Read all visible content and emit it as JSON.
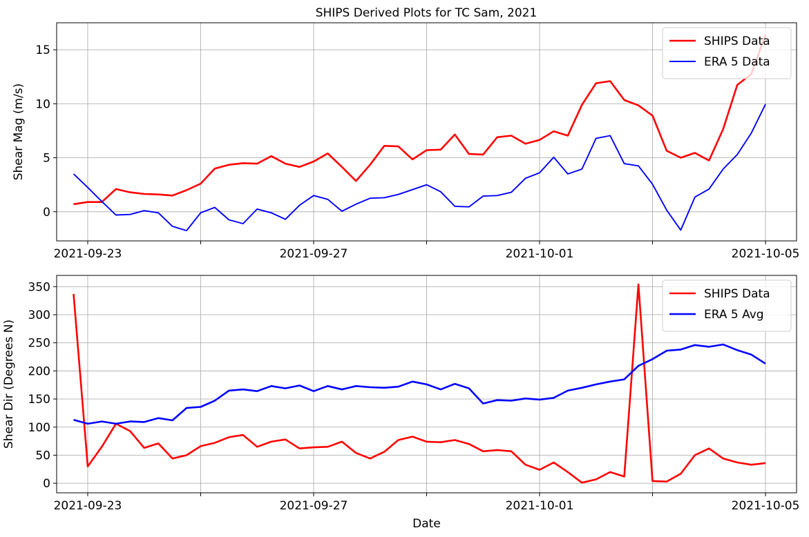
{
  "figure_title": "SHIPS Derived Plots for TC Sam, 2021",
  "chart_data": [
    {
      "type": "line",
      "title": "SHIPS Derived Plots for TC Sam, 2021",
      "xlabel": "",
      "ylabel": "Shear Mag (m/s)",
      "x_ticks": [
        "2021-09-23",
        "",
        "2021-09-27",
        "",
        "2021-10-01",
        "",
        "2021-10-05"
      ],
      "x_tick_dates": [
        "2021-09-23",
        "2021-09-25",
        "2021-09-27",
        "2021-09-29",
        "2021-10-01",
        "2021-10-03",
        "2021-10-05"
      ],
      "xlim": [
        "2021-09-22T10:48",
        "2021-10-05T13:12"
      ],
      "y_ticks": [
        0,
        5,
        10,
        15
      ],
      "ylim": [
        -2.7,
        17.5
      ],
      "grid": true,
      "legend": "upper-right",
      "x_start": "2021-09-22T18:00",
      "x_step_hours": 6,
      "series": [
        {
          "name": "SHIPS Data",
          "color": "#ff0000",
          "width": 2.6,
          "values": [
            0.7,
            0.9,
            0.9,
            2.1,
            1.8,
            1.65,
            1.6,
            1.5,
            2.0,
            2.6,
            4.0,
            4.35,
            4.5,
            4.45,
            5.15,
            4.45,
            4.15,
            4.65,
            5.4,
            4.15,
            2.85,
            4.35,
            6.1,
            6.05,
            4.85,
            5.7,
            5.75,
            7.15,
            5.35,
            5.3,
            6.9,
            7.05,
            6.3,
            6.65,
            7.45,
            7.05,
            9.9,
            11.9,
            12.1,
            10.35,
            9.85,
            8.9,
            5.65,
            5.0,
            5.45,
            4.75,
            7.65,
            11.75,
            12.75,
            16.4
          ]
        },
        {
          "name": "ERA 5 Data",
          "color": "#0000ff",
          "width": 1.9,
          "values": [
            3.5,
            2.25,
            0.95,
            -0.3,
            -0.25,
            0.1,
            -0.1,
            -1.35,
            -1.75,
            -0.1,
            0.4,
            -0.75,
            -1.1,
            0.25,
            -0.1,
            -0.7,
            0.6,
            1.5,
            1.15,
            0.05,
            0.7,
            1.25,
            1.3,
            1.6,
            2.05,
            2.5,
            1.85,
            0.5,
            0.45,
            1.45,
            1.5,
            1.8,
            3.1,
            3.6,
            5.05,
            3.5,
            3.95,
            6.8,
            7.05,
            4.45,
            4.25,
            2.55,
            0.15,
            -1.7,
            1.35,
            2.1,
            3.95,
            5.3,
            7.3,
            9.95
          ]
        }
      ]
    },
    {
      "type": "line",
      "title": "",
      "xlabel": "Date",
      "ylabel": "Shear Dir (Degrees N)",
      "x_ticks": [
        "2021-09-23",
        "",
        "2021-09-27",
        "",
        "2021-10-01",
        "",
        "2021-10-05"
      ],
      "x_tick_dates": [
        "2021-09-23",
        "2021-09-25",
        "2021-09-27",
        "2021-09-29",
        "2021-10-01",
        "2021-10-03",
        "2021-10-05"
      ],
      "xlim": [
        "2021-09-22T10:48",
        "2021-10-05T13:12"
      ],
      "y_ticks": [
        0,
        50,
        100,
        150,
        200,
        250,
        300,
        350
      ],
      "ylim": [
        -17,
        370
      ],
      "grid": true,
      "legend": "upper-right",
      "x_start": "2021-09-22T18:00",
      "x_step_hours": 6,
      "series": [
        {
          "name": "SHIPS Data",
          "color": "#ff0000",
          "width": 2.6,
          "values": [
            337,
            30,
            65,
            106,
            93,
            63,
            71,
            44,
            50,
            66,
            72,
            82,
            86,
            65,
            74,
            78,
            62,
            64,
            65,
            74,
            54,
            44,
            56,
            77,
            83,
            74,
            73,
            77,
            70,
            57,
            59,
            57,
            33,
            24,
            37,
            20,
            1,
            7,
            20,
            12,
            354,
            4,
            3,
            17,
            50,
            62,
            44,
            37,
            33,
            36
          ]
        },
        {
          "name": "ERA 5 Avg",
          "color": "#0000ff",
          "width": 2.6,
          "values": [
            113,
            106,
            110,
            106,
            110,
            109,
            116,
            112,
            134,
            136,
            147,
            165,
            167,
            164,
            173,
            169,
            174,
            164,
            173,
            167,
            173,
            171,
            170,
            172,
            181,
            176,
            167,
            177,
            169,
            142,
            148,
            147,
            151,
            149,
            152,
            165,
            170,
            176,
            181,
            185,
            209,
            221,
            236,
            238,
            246,
            243,
            247,
            237,
            229,
            213
          ]
        }
      ]
    }
  ]
}
